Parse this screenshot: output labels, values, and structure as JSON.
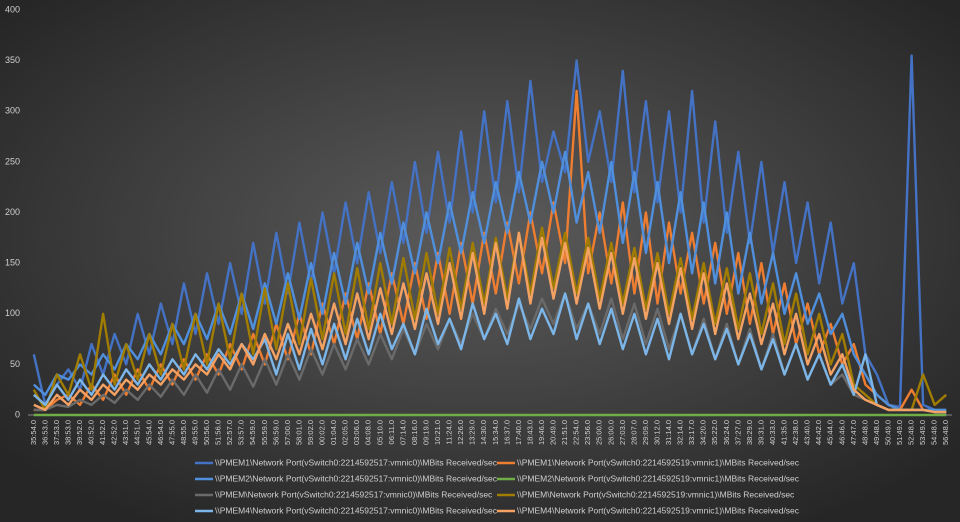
{
  "chart_data": {
    "type": "line",
    "categories": [
      "35:54.0",
      "36:53.0",
      "37:53.0",
      "38:53.0",
      "39:52.0",
      "40:52.0",
      "41:52.0",
      "42:52.0",
      "43:51.0",
      "44:51.0",
      "45:54.0",
      "46:54.0",
      "47:55.0",
      "48:55.0",
      "49:55.0",
      "50:56.0",
      "51:56.0",
      "52:57.0",
      "53:57.0",
      "54:59.0",
      "55:59.0",
      "56:59.0",
      "57:00.0",
      "58:01.0",
      "59:02.0",
      "00:02.0",
      "01:04.0",
      "02:05.0",
      "03:06.0",
      "04:08.0",
      "05:10.0",
      "06:11.0",
      "07:14.0",
      "08:16.0",
      "09:19.0",
      "10:21.0",
      "11:24.0",
      "12:26.0",
      "13:29.0",
      "14:30.0",
      "15:34.0",
      "16:37.0",
      "17:40.0",
      "18:43.0",
      "19:46.0",
      "20:49.0",
      "21:51.0",
      "22:54.0",
      "23:56.0",
      "25:00.0",
      "26:00.0",
      "27:03.0",
      "28:07.0",
      "29:09.0",
      "30:12.0",
      "31:14.0",
      "32:14.0",
      "33:17.0",
      "34:20.0",
      "35:22.0",
      "36:24.0",
      "37:27.0",
      "38:29.0",
      "39:31.0",
      "40:33.0",
      "41:35.0",
      "42:38.0",
      "43:40.0",
      "44:42.0",
      "45:44.0",
      "46:46.0",
      "47:47.0",
      "48:48.0",
      "49:48.0",
      "50:49.0",
      "51:49.0",
      "52:48.0",
      "53:49.0",
      "54:48.0",
      "56:48.0"
    ],
    "series": [
      {
        "name": "\\\\PMEM1\\Network Port(vSwitch0:2214592517:vmnic0)\\MBits Received/sec",
        "color": "#4472c4",
        "values": [
          60,
          10,
          30,
          45,
          25,
          70,
          40,
          80,
          50,
          100,
          60,
          110,
          70,
          130,
          80,
          140,
          90,
          150,
          100,
          170,
          110,
          180,
          120,
          190,
          130,
          200,
          140,
          210,
          150,
          220,
          160,
          230,
          170,
          250,
          180,
          260,
          190,
          280,
          200,
          300,
          210,
          310,
          220,
          330,
          230,
          280,
          240,
          350,
          250,
          300,
          230,
          340,
          220,
          310,
          210,
          300,
          200,
          320,
          190,
          290,
          180,
          260,
          170,
          250,
          160,
          230,
          150,
          210,
          130,
          190,
          110,
          150,
          60,
          40,
          10,
          8,
          355,
          10,
          5,
          5
        ]
      },
      {
        "name": "\\\\PMEM1\\Network Port(vSwitch0:2214592519:vmnic1)\\MBits Received/sec",
        "color": "#ed7d31",
        "values": [
          5,
          5,
          15,
          20,
          10,
          30,
          15,
          40,
          20,
          45,
          25,
          50,
          30,
          55,
          35,
          60,
          40,
          70,
          45,
          80,
          50,
          90,
          55,
          100,
          60,
          110,
          70,
          120,
          75,
          130,
          80,
          140,
          90,
          150,
          95,
          160,
          100,
          170,
          110,
          180,
          120,
          190,
          130,
          200,
          140,
          210,
          150,
          320,
          140,
          200,
          130,
          210,
          120,
          200,
          110,
          190,
          120,
          180,
          110,
          170,
          100,
          160,
          90,
          150,
          80,
          130,
          70,
          110,
          60,
          90,
          50,
          70,
          30,
          20,
          10,
          5,
          25,
          5,
          3,
          3
        ]
      },
      {
        "name": "\\\\PMEM2\\Network Port(vSwitch0:2214592517:vmnic0)\\MBits Received/sec",
        "color": "#4f8fdc",
        "values": [
          30,
          20,
          40,
          35,
          50,
          40,
          60,
          45,
          70,
          55,
          80,
          60,
          90,
          70,
          100,
          75,
          110,
          80,
          120,
          85,
          130,
          90,
          140,
          95,
          150,
          100,
          160,
          110,
          170,
          120,
          180,
          130,
          190,
          140,
          200,
          150,
          210,
          160,
          220,
          170,
          230,
          180,
          240,
          190,
          250,
          200,
          260,
          190,
          240,
          180,
          250,
          170,
          240,
          160,
          230,
          150,
          220,
          140,
          210,
          130,
          200,
          120,
          180,
          110,
          160,
          100,
          140,
          90,
          120,
          80,
          100,
          60,
          40,
          20,
          10,
          5,
          5,
          5,
          5,
          5
        ]
      },
      {
        "name": "\\\\PMEM2\\Network Port(vSwitch0:2214592519:vmnic1)\\MBits Received/sec",
        "color": "#70ad47",
        "values": [
          0,
          0,
          0,
          0,
          0,
          0,
          0,
          0,
          0,
          0,
          0,
          0,
          0,
          0,
          0,
          0,
          0,
          0,
          0,
          0,
          0,
          0,
          0,
          0,
          0,
          0,
          0,
          0,
          0,
          0,
          0,
          0,
          0,
          0,
          0,
          0,
          0,
          0,
          0,
          0,
          0,
          0,
          0,
          0,
          0,
          0,
          0,
          0,
          0,
          0,
          0,
          0,
          0,
          0,
          0,
          0,
          0,
          0,
          0,
          0,
          0,
          0,
          0,
          0,
          0,
          0,
          0,
          0,
          0,
          0,
          0,
          0,
          0,
          0,
          0,
          0,
          0,
          0,
          0,
          0
        ]
      },
      {
        "name": "\\\\PMEM\\Network Port(vSwitch0:2214592517:vmnic0)\\MBits Received/sec",
        "color": "#6a6a6a",
        "values": [
          5,
          5,
          10,
          8,
          15,
          10,
          20,
          12,
          25,
          15,
          30,
          18,
          35,
          20,
          40,
          22,
          45,
          25,
          50,
          28,
          55,
          30,
          60,
          35,
          65,
          40,
          70,
          45,
          75,
          50,
          80,
          55,
          85,
          60,
          90,
          65,
          95,
          70,
          100,
          75,
          105,
          80,
          110,
          85,
          115,
          90,
          120,
          85,
          110,
          80,
          115,
          75,
          110,
          70,
          105,
          65,
          100,
          60,
          95,
          55,
          90,
          50,
          85,
          45,
          80,
          40,
          70,
          35,
          60,
          30,
          40,
          20,
          15,
          10,
          5,
          5,
          5,
          5,
          3,
          3
        ]
      },
      {
        "name": "\\\\PMEM\\Network Port(vSwitch0:2214592519:vmnic1)\\MBits Received/sec",
        "color": "#a07c00",
        "values": [
          25,
          5,
          40,
          20,
          60,
          25,
          100,
          30,
          70,
          35,
          80,
          40,
          90,
          45,
          100,
          50,
          110,
          55,
          120,
          60,
          125,
          65,
          130,
          70,
          135,
          75,
          140,
          80,
          145,
          85,
          150,
          90,
          155,
          95,
          160,
          100,
          165,
          105,
          170,
          110,
          175,
          115,
          180,
          120,
          185,
          125,
          180,
          120,
          175,
          115,
          170,
          110,
          165,
          105,
          160,
          100,
          155,
          95,
          150,
          90,
          145,
          85,
          140,
          80,
          130,
          70,
          120,
          60,
          100,
          50,
          80,
          30,
          20,
          10,
          5,
          5,
          5,
          40,
          10,
          20
        ]
      },
      {
        "name": "\\\\PMEM4\\Network Port(vSwitch0:2214592517:vmnic0)\\MBits Received/sec",
        "color": "#7cb6e8",
        "values": [
          20,
          10,
          30,
          15,
          35,
          20,
          40,
          25,
          45,
          30,
          50,
          35,
          55,
          40,
          60,
          45,
          65,
          50,
          70,
          55,
          75,
          40,
          80,
          45,
          85,
          50,
          90,
          55,
          95,
          60,
          100,
          65,
          90,
          60,
          105,
          70,
          95,
          65,
          110,
          75,
          100,
          70,
          115,
          75,
          105,
          80,
          120,
          75,
          110,
          70,
          105,
          65,
          100,
          60,
          95,
          55,
          100,
          60,
          90,
          55,
          85,
          50,
          80,
          45,
          75,
          40,
          70,
          35,
          60,
          30,
          50,
          20,
          60,
          10,
          5,
          5,
          5,
          5,
          3,
          3
        ]
      },
      {
        "name": "\\\\PMEM4\\Network Port(vSwitch0:2214592519:vmnic1)\\MBits Received/sec",
        "color": "#f4a264",
        "values": [
          10,
          5,
          20,
          10,
          25,
          15,
          30,
          20,
          35,
          25,
          40,
          30,
          45,
          35,
          50,
          40,
          60,
          45,
          70,
          50,
          80,
          55,
          90,
          60,
          100,
          65,
          110,
          70,
          120,
          75,
          125,
          80,
          130,
          85,
          140,
          90,
          150,
          95,
          160,
          100,
          170,
          105,
          180,
          110,
          175,
          115,
          170,
          110,
          165,
          105,
          160,
          100,
          155,
          95,
          150,
          90,
          145,
          85,
          140,
          80,
          130,
          75,
          120,
          70,
          110,
          60,
          100,
          50,
          80,
          40,
          60,
          25,
          15,
          10,
          5,
          5,
          5,
          5,
          3,
          3
        ]
      }
    ],
    "ylim": [
      0,
      400
    ],
    "yticks": [
      0,
      50,
      100,
      150,
      200,
      250,
      300,
      350,
      400
    ],
    "grid": false
  }
}
